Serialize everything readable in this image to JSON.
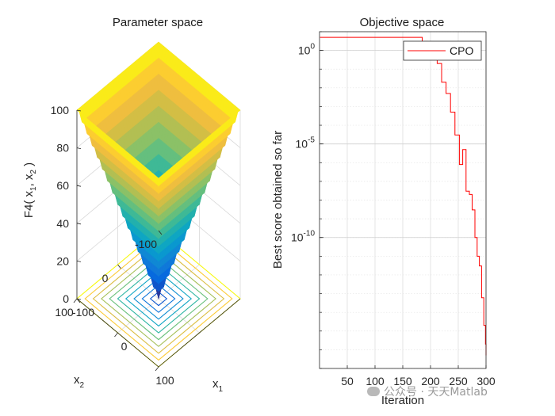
{
  "chart_data": [
    {
      "type": "surface3d",
      "title": "Parameter space",
      "xlabel": "x",
      "xlabel_sub": "1",
      "ylabel": "x",
      "ylabel_sub": "2",
      "zlabel": "F4( x",
      "zlabel_sub1": "1",
      "zlabel_mid": ", x",
      "zlabel_sub2": "2",
      "zlabel_end": " )",
      "function": "max(|x1|, |x2|)",
      "x_range": [
        -100,
        100
      ],
      "y_range": [
        -100,
        100
      ],
      "z_range": [
        0,
        100
      ],
      "x_ticks": [
        "-100",
        "0",
        "100"
      ],
      "y_ticks": [
        "-100",
        "0",
        "100"
      ],
      "z_ticks": [
        "0",
        "20",
        "40",
        "60",
        "80",
        "100"
      ],
      "contour_levels": 10,
      "colormap": "parula",
      "grid": true
    },
    {
      "type": "line",
      "title": "Objective space",
      "xlabel": "Iteration",
      "ylabel": "Best score obtained so far",
      "yscale": "log",
      "xlim": [
        0,
        300
      ],
      "ylim": [
        1e-17,
        10.0
      ],
      "x_ticks": [
        "50",
        "100",
        "150",
        "200",
        "250",
        "300"
      ],
      "y_ticks": [
        {
          "base": "10",
          "exp": "0",
          "value": 1
        },
        {
          "base": "10",
          "exp": "-5",
          "value": 1e-05
        },
        {
          "base": "10",
          "exp": "-10",
          "value": 1e-10
        }
      ],
      "legend_position": "top-right",
      "grid": true,
      "series": [
        {
          "name": "CPO",
          "color": "#ff0000",
          "x": [
            1,
            175,
            185,
            195,
            200,
            206,
            212,
            220,
            228,
            236,
            244,
            252,
            258,
            264,
            270,
            275,
            280,
            284,
            288,
            292,
            296,
            299,
            300
          ],
          "y": [
            5,
            5,
            3,
            1.5,
            1.2,
            0.5,
            0.2,
            0.02,
            0.005,
            0.0005,
            3e-05,
            8e-07,
            5e-06,
            3e-08,
            2e-08,
            3e-09,
            1e-10,
            1e-11,
            3e-12,
            6e-14,
            2e-15,
            2e-16,
            5e-17
          ]
        }
      ]
    }
  ],
  "watermark": {
    "text": "公众号 · 天天Matlab",
    "icon": "wechat-icon"
  }
}
